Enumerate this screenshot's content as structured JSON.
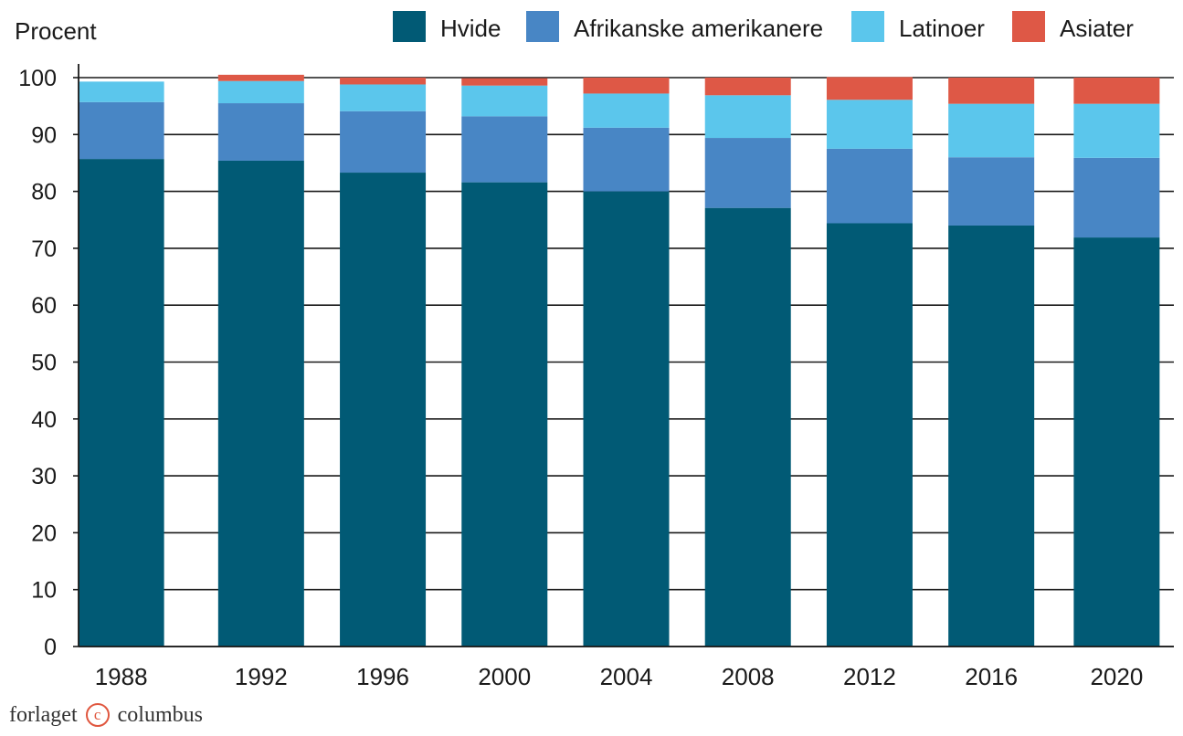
{
  "chart_data": {
    "type": "bar",
    "stacked": true,
    "ylabel": "Procent",
    "xlabel": "",
    "ylim": [
      0,
      100
    ],
    "yticks": [
      0,
      10,
      20,
      30,
      40,
      50,
      60,
      70,
      80,
      90,
      100
    ],
    "grid": true,
    "legend_position": "top-right",
    "categories": [
      "1988",
      "1992",
      "1996",
      "2000",
      "2004",
      "2008",
      "2012",
      "2016",
      "2020"
    ],
    "series": [
      {
        "name": "Hvide",
        "color": "#015a75",
        "values": [
          85.7,
          85.4,
          83.3,
          81.6,
          80.0,
          77.1,
          74.4,
          74.0,
          71.9
        ]
      },
      {
        "name": "Afrikanske amerikanere",
        "color": "#4886c5",
        "values": [
          10.0,
          10.1,
          10.8,
          11.6,
          11.2,
          12.3,
          13.1,
          12.0,
          14.0
        ]
      },
      {
        "name": "Latinoer",
        "color": "#5bc6ec",
        "values": [
          3.6,
          3.9,
          4.7,
          5.4,
          6.0,
          7.5,
          8.6,
          9.4,
          9.5
        ]
      },
      {
        "name": "Asiater",
        "color": "#de5846",
        "values": [
          0.0,
          1.1,
          1.2,
          1.3,
          2.8,
          3.1,
          4.0,
          4.6,
          4.6
        ]
      }
    ]
  },
  "footer": {
    "publisher_left": "forlaget",
    "publisher_mark": "c",
    "publisher_right": "columbus"
  }
}
